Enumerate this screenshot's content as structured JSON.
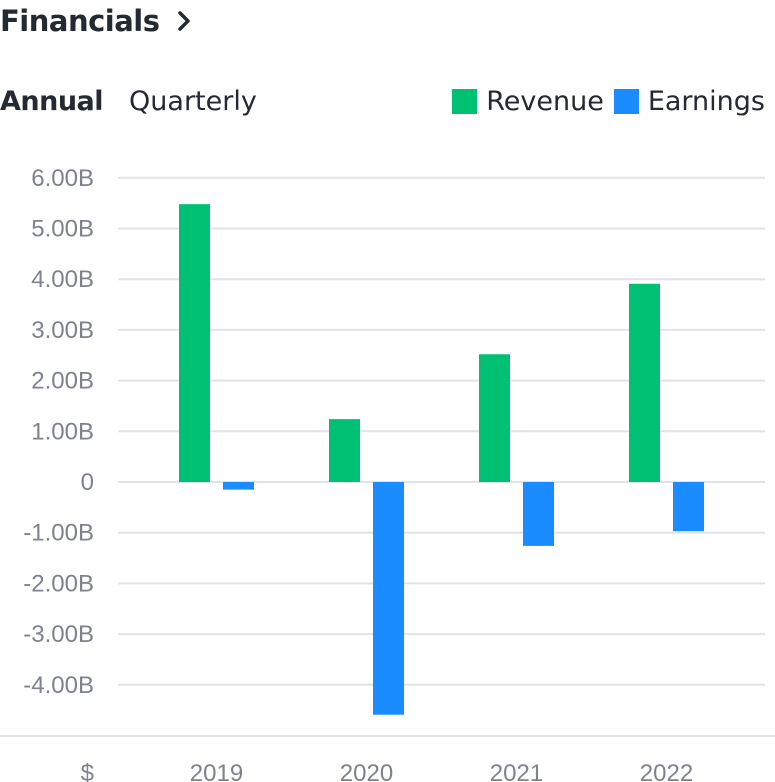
{
  "header": {
    "title": "Financials",
    "chevron_icon": "chevron-right-icon"
  },
  "tabs": [
    {
      "label": "Annual",
      "active": true
    },
    {
      "label": "Quarterly",
      "active": false
    }
  ],
  "legend": [
    {
      "label": "Revenue",
      "color": "#00c073"
    },
    {
      "label": "Earnings",
      "color": "#1a8cff"
    }
  ],
  "chart_data": {
    "type": "bar",
    "title": "Financials",
    "xlabel": "",
    "ylabel": "$",
    "categories": [
      "2019",
      "2020",
      "2021",
      "2022"
    ],
    "series": [
      {
        "name": "Revenue",
        "color": "#00c073",
        "values": [
          5.48,
          1.24,
          2.52,
          3.91
        ]
      },
      {
        "name": "Earnings",
        "color": "#1a8cff",
        "values": [
          -0.15,
          -4.59,
          -1.26,
          -0.97
        ]
      }
    ],
    "units": "B (billions USD)",
    "ylim": [
      -5,
      6
    ],
    "yticks": [
      6,
      5,
      4,
      3,
      2,
      1,
      0,
      -1,
      -2,
      -3,
      -4
    ],
    "ytick_labels": [
      "6.00B",
      "5.00B",
      "4.00B",
      "3.00B",
      "2.00B",
      "1.00B",
      "0",
      "-1.00B",
      "-2.00B",
      "-3.00B",
      "-4.00B"
    ],
    "currency_label": "$",
    "grid": true,
    "legend_position": "top-right"
  }
}
